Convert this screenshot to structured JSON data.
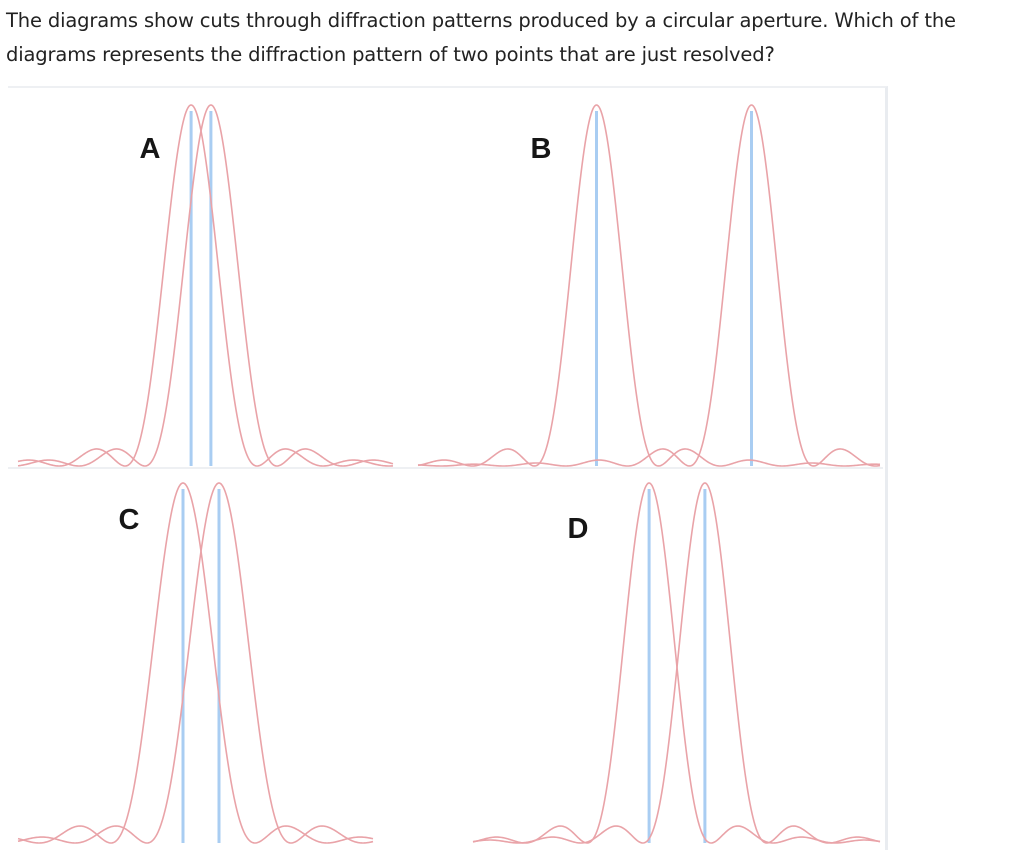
{
  "question": {
    "line1": "The diagrams show cuts through diffraction patterns produced by  a circular aperture.  Which of the",
    "line2": "diagrams represents the diffraction pattern of two points that are just resolved?"
  },
  "figure": {
    "colors": {
      "curve": "#e9a3a8",
      "peak_line": "#a9cdf2",
      "background": "#ffffff"
    },
    "panels": [
      {
        "label": "A",
        "separation": 0.3
      },
      {
        "label": "B",
        "separation": 2.5
      },
      {
        "label": "C",
        "separation": 0.5
      },
      {
        "label": "D",
        "separation": 0.9
      }
    ]
  }
}
